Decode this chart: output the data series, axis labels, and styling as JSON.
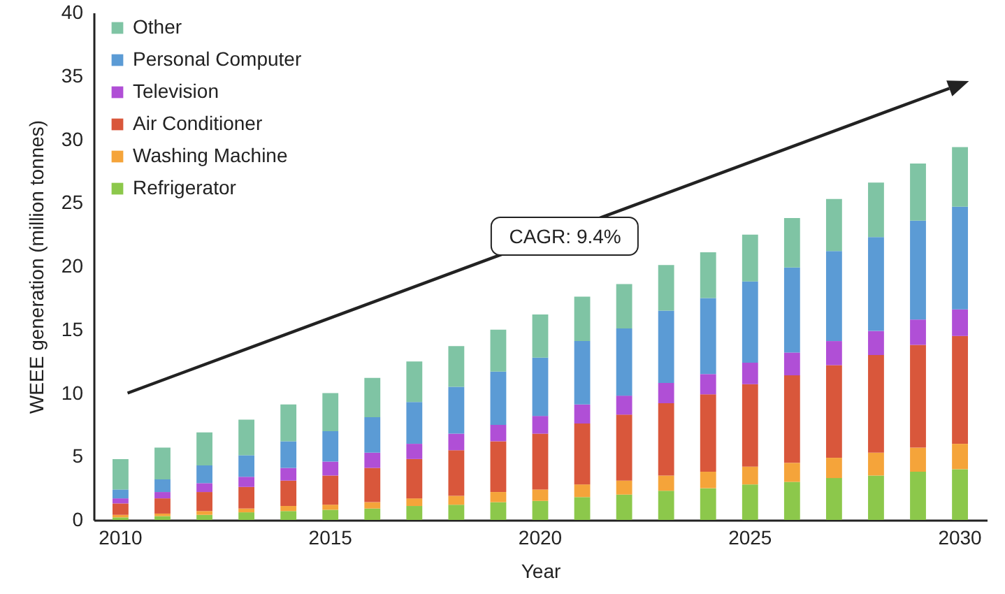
{
  "chart_data": {
    "type": "bar",
    "stacked": true,
    "xlabel": "Year",
    "ylabel": "WEEE generation (million tonnes)",
    "categories": [
      "2010",
      null,
      null,
      null,
      null,
      "2015",
      null,
      null,
      null,
      null,
      "2020",
      null,
      null,
      null,
      null,
      "2025",
      null,
      null,
      null,
      null,
      "2030"
    ],
    "ylim": [
      0,
      40
    ],
    "yticks": [
      0,
      5,
      10,
      15,
      20,
      25,
      30,
      35,
      40
    ],
    "grid": false,
    "legend": "top left",
    "annotations": [
      "CAGR: 9.4%"
    ],
    "series": [
      {
        "name": "Refrigerator",
        "color": "#8cc84b",
        "values": [
          0.2,
          0.3,
          0.4,
          0.6,
          0.7,
          0.8,
          0.9,
          1.1,
          1.2,
          1.4,
          1.5,
          1.8,
          2.0,
          2.3,
          2.5,
          2.8,
          3.0,
          3.3,
          3.5,
          3.8,
          4.0
        ]
      },
      {
        "name": "Washing Machine",
        "color": "#f5a43a",
        "values": [
          0.2,
          0.2,
          0.3,
          0.3,
          0.4,
          0.4,
          0.5,
          0.6,
          0.7,
          0.8,
          0.9,
          1.0,
          1.1,
          1.2,
          1.3,
          1.4,
          1.5,
          1.6,
          1.8,
          1.9,
          2.0
        ]
      },
      {
        "name": "Air Conditioner",
        "color": "#d9573b",
        "values": [
          0.9,
          1.2,
          1.5,
          1.7,
          2.0,
          2.3,
          2.7,
          3.1,
          3.6,
          4.0,
          4.4,
          4.8,
          5.2,
          5.7,
          6.1,
          6.5,
          6.9,
          7.3,
          7.7,
          8.1,
          8.5
        ]
      },
      {
        "name": "Television",
        "color": "#b04fd6",
        "values": [
          0.4,
          0.5,
          0.7,
          0.8,
          1.0,
          1.1,
          1.2,
          1.2,
          1.3,
          1.3,
          1.4,
          1.5,
          1.5,
          1.6,
          1.6,
          1.7,
          1.8,
          1.9,
          1.9,
          2.0,
          2.1
        ]
      },
      {
        "name": "Personal Computer",
        "color": "#5b9bd5",
        "values": [
          0.7,
          1.0,
          1.4,
          1.7,
          2.1,
          2.4,
          2.8,
          3.3,
          3.7,
          4.2,
          4.6,
          5.0,
          5.3,
          5.7,
          6.0,
          6.4,
          6.7,
          7.1,
          7.4,
          7.8,
          8.1
        ]
      },
      {
        "name": "Other",
        "color": "#7fc4a4",
        "values": [
          2.4,
          2.5,
          2.6,
          2.8,
          2.9,
          3.0,
          3.1,
          3.2,
          3.2,
          3.3,
          3.4,
          3.5,
          3.5,
          3.6,
          3.6,
          3.7,
          3.9,
          4.1,
          4.3,
          4.5,
          4.7
        ]
      }
    ]
  }
}
